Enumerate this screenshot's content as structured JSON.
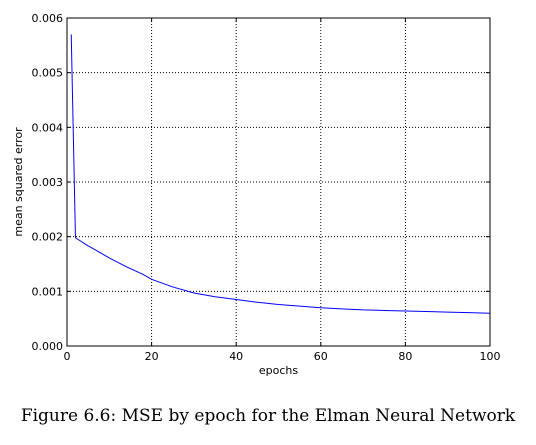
{
  "caption": "Figure 6.6: MSE by epoch for the Elman Neural Network",
  "chart_data": {
    "type": "line",
    "title": "",
    "xlabel": "epochs",
    "ylabel": "mean squared error",
    "xlim": [
      0,
      100
    ],
    "ylim": [
      0,
      0.006
    ],
    "xticks": [
      0,
      20,
      40,
      60,
      80,
      100
    ],
    "xtick_labels": [
      "0",
      "20",
      "40",
      "60",
      "80",
      "100"
    ],
    "yticks": [
      0,
      0.001,
      0.002,
      0.003,
      0.004,
      0.005,
      0.006
    ],
    "ytick_labels": [
      "0.000",
      "0.001",
      "0.002",
      "0.003",
      "0.004",
      "0.005",
      "0.006"
    ],
    "grid": true,
    "legend": "none",
    "series": [
      {
        "color": "#0000ff",
        "x": [
          1,
          2,
          3,
          4,
          5,
          6,
          8,
          10,
          12,
          14,
          16,
          18,
          20,
          25,
          30,
          35,
          40,
          45,
          50,
          55,
          60,
          65,
          70,
          75,
          80,
          85,
          90,
          95,
          100
        ],
        "y": [
          0.0057,
          0.00198,
          0.00193,
          0.00188,
          0.00183,
          0.00179,
          0.0017,
          0.00161,
          0.00153,
          0.00145,
          0.00138,
          0.00131,
          0.00122,
          0.00108,
          0.00097,
          0.0009,
          0.00085,
          0.0008,
          0.00076,
          0.00073,
          0.0007,
          0.00068,
          0.00066,
          0.00065,
          0.00064,
          0.00063,
          0.00062,
          0.00061,
          0.0006
        ]
      }
    ]
  }
}
